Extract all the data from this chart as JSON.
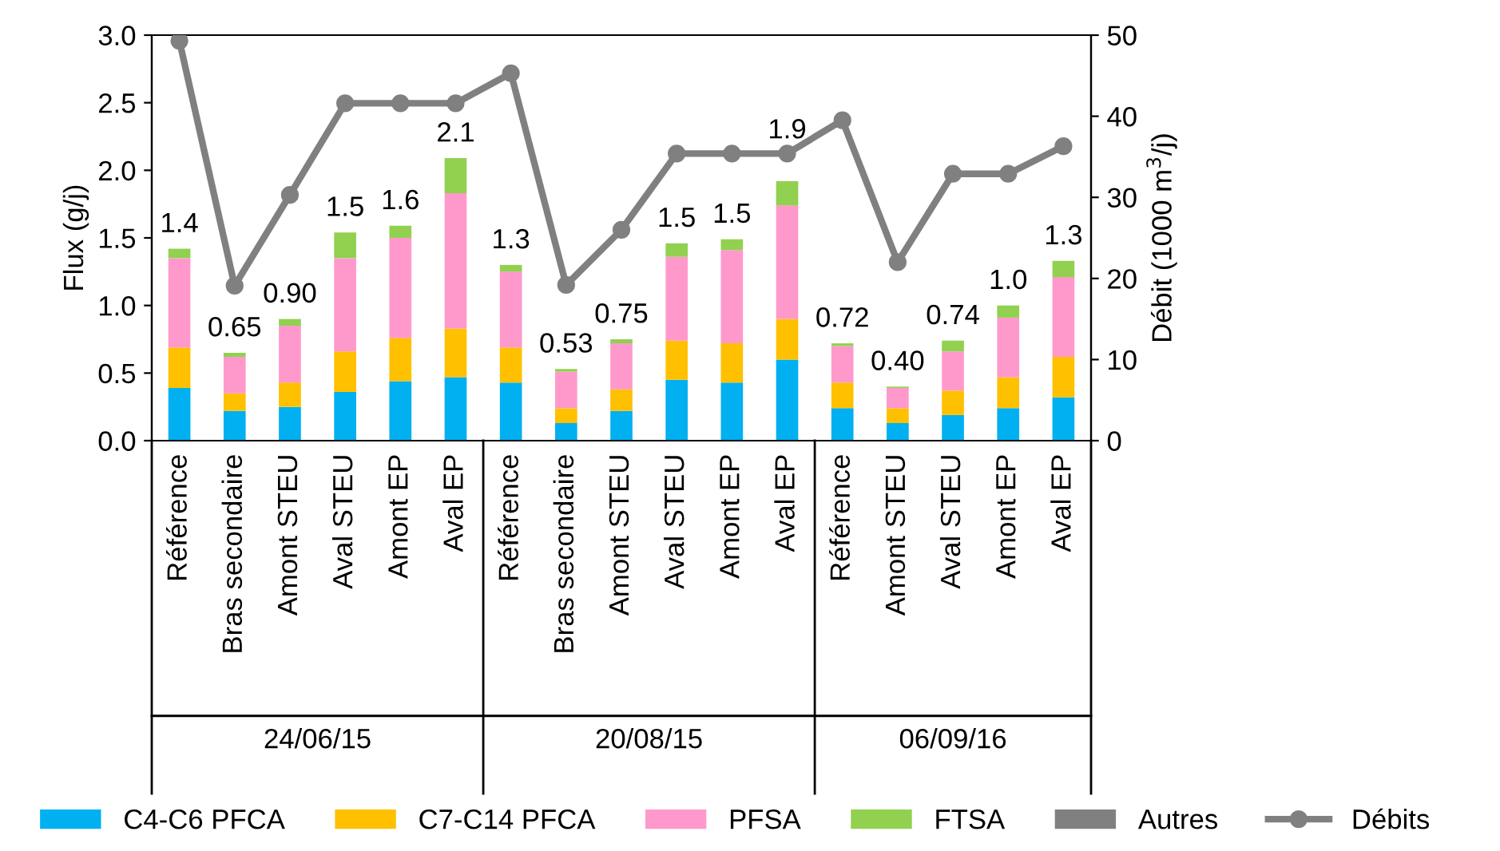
{
  "chart_data": {
    "type": "bar",
    "stacked": true,
    "ylabel": "Flux (g/j)",
    "y2label": "Débit (1000 m$^{3}$/j)",
    "categories": [
      "Référence",
      "Bras secondaire",
      "Amont STEU",
      "Aval STEU",
      "Amont EP",
      "Aval EP",
      "Référence",
      "Bras secondaire",
      "Amont STEU",
      "Aval STEU",
      "Amont EP",
      "Aval EP",
      "Référence",
      "Amont STEU",
      "Aval STEU",
      "Amont EP",
      "Aval EP"
    ],
    "series": [
      {
        "name": "C4-C6 PFCA",
        "color": "#00b0f0",
        "values": [
          0.39,
          0.22,
          0.25,
          0.36,
          0.44,
          0.47,
          0.43,
          0.13,
          0.22,
          0.45,
          0.43,
          0.6,
          0.24,
          0.13,
          0.19,
          0.24,
          0.32
        ]
      },
      {
        "name": "C7-C14 PFCA",
        "color": "#ffc000",
        "values": [
          0.3,
          0.13,
          0.18,
          0.3,
          0.32,
          0.36,
          0.26,
          0.11,
          0.16,
          0.29,
          0.29,
          0.3,
          0.19,
          0.11,
          0.18,
          0.23,
          0.3
        ]
      },
      {
        "name": "PFSA",
        "color": "#ff99cc",
        "values": [
          0.66,
          0.27,
          0.42,
          0.69,
          0.74,
          1.0,
          0.56,
          0.27,
          0.34,
          0.62,
          0.69,
          0.84,
          0.27,
          0.15,
          0.29,
          0.44,
          0.59
        ]
      },
      {
        "name": "FTSA",
        "color": "#92d050",
        "values": [
          0.07,
          0.03,
          0.05,
          0.19,
          0.09,
          0.26,
          0.05,
          0.02,
          0.03,
          0.1,
          0.08,
          0.18,
          0.02,
          0.01,
          0.08,
          0.09,
          0.12
        ]
      },
      {
        "name": "Autres",
        "color": "#808080",
        "values": [
          0,
          0,
          0,
          0,
          0,
          0,
          0,
          0,
          0,
          0,
          0,
          0,
          0,
          0,
          0,
          0,
          0
        ]
      },
      {
        "name": "Débits",
        "color": "#808080",
        "type": "line",
        "axis": "y2",
        "marker": "circle",
        "values": [
          49.3,
          19.1,
          30.3,
          41.6,
          41.6,
          41.6,
          45.3,
          19.2,
          26.0,
          35.4,
          35.4,
          35.4,
          39.5,
          22.0,
          32.9,
          32.9,
          36.3
        ]
      }
    ],
    "totals": [
      "1.4",
      "0.65",
      "0.90",
      "1.5",
      "1.6",
      "2.1",
      "1.3",
      "0.53",
      "0.75",
      "1.5",
      "1.5",
      "1.9",
      "0.72",
      "0.40",
      "0.74",
      "1.0",
      "1.3"
    ],
    "annotations": [
      "24/06/15",
      "20/08/15",
      "06/09/16"
    ],
    "ylim": [
      0,
      3.0
    ],
    "yticks": [
      {
        "value": 0,
        "label": "0.0"
      },
      {
        "value": 0.5,
        "label": "0.5"
      },
      {
        "value": 1.0,
        "label": "1.0"
      },
      {
        "value": 1.5,
        "label": "1.5"
      },
      {
        "value": 2.0,
        "label": "2.0"
      },
      {
        "value": 2.5,
        "label": "2.5"
      },
      {
        "value": 3.0,
        "label": "3.0"
      }
    ],
    "y2lim": [
      0,
      50
    ],
    "y2ticks": [
      0,
      10,
      20,
      30,
      40,
      50
    ],
    "grid": false,
    "legend": "bottom"
  }
}
